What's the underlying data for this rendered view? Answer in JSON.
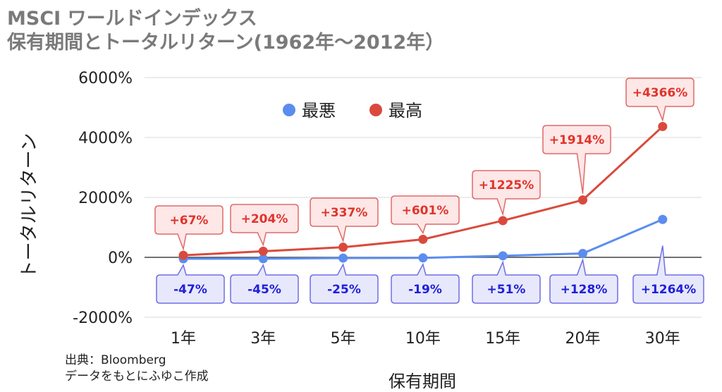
{
  "title": {
    "line1": "MSCI ワールドインデックス",
    "line2": "保有期間とトータルリターン(1962年～2012年）"
  },
  "source": {
    "line1": "出典：Bloomberg",
    "line2": "データをもとにふゆこ作成"
  },
  "chart_data": {
    "type": "line",
    "categories": [
      "1年",
      "3年",
      "5年",
      "10年",
      "15年",
      "20年",
      "30年"
    ],
    "xlabel": "保有期間",
    "ylabel": "トータルリターン",
    "ylim": [
      -2000,
      6000
    ],
    "yticks": [
      6000,
      4000,
      2000,
      0,
      -2000
    ],
    "ytick_labels": [
      "6000%",
      "4000%",
      "2000%",
      "0%",
      "-2000%"
    ],
    "grid": true,
    "legend_position": "top-center",
    "series": [
      {
        "name": "最悪",
        "color": "#5b8def",
        "values": [
          -47,
          -45,
          -25,
          -19,
          51,
          128,
          1264
        ],
        "labels": [
          "-47%",
          "-45%",
          "-25%",
          "-19%",
          "+51%",
          "+128%",
          "+1264%"
        ]
      },
      {
        "name": "最高",
        "color": "#d94a3d",
        "values": [
          67,
          204,
          337,
          601,
          1225,
          1914,
          4366
        ],
        "labels": [
          "+67%",
          "+204%",
          "+337%",
          "+601%",
          "+1225%",
          "+1914%",
          "+4366%"
        ]
      }
    ]
  }
}
